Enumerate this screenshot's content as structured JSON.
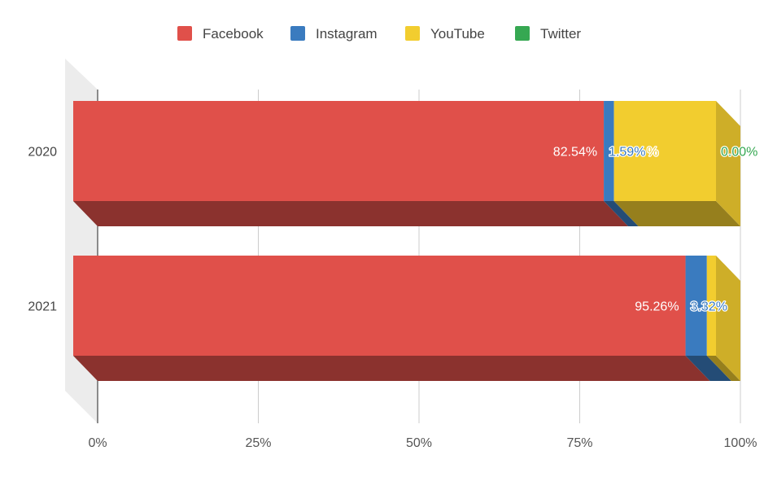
{
  "chart_data": {
    "type": "bar",
    "orientation": "horizontal",
    "stacking": "percent",
    "style": "3d",
    "categories": [
      "2020",
      "2021"
    ],
    "series": [
      {
        "name": "Facebook",
        "color": "#e0504a",
        "values": [
          82.54,
          95.26
        ],
        "labels": [
          "82.54%",
          "95.26%"
        ]
      },
      {
        "name": "Instagram",
        "color": "#3a7bbf",
        "values": [
          1.59,
          3.32
        ],
        "labels": [
          "1.59%",
          "3.32%"
        ]
      },
      {
        "name": "YouTube",
        "color": "#f2cd2f",
        "values": [
          15.87,
          1.42
        ],
        "labels": [
          "%",
          ""
        ]
      },
      {
        "name": "Twitter",
        "color": "#36a852",
        "values": [
          0.0,
          0.0
        ],
        "labels": [
          "0.00%",
          ""
        ]
      }
    ],
    "x_ticks": [
      "0%",
      "25%",
      "50%",
      "75%",
      "100%"
    ],
    "xlim": [
      0,
      100
    ],
    "grid": true,
    "legend": "top"
  }
}
